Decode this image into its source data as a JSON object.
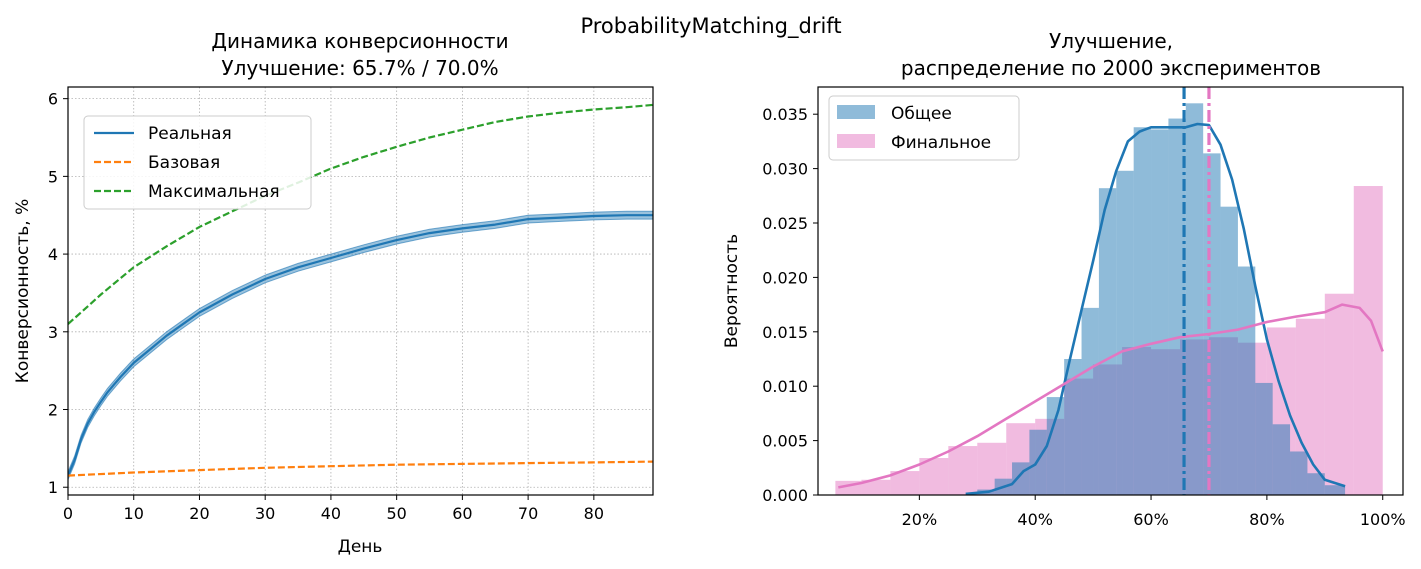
{
  "suptitle": "ProbabilityMatching_drift",
  "chart_data": [
    {
      "type": "line",
      "title": "Динамика конверсионности",
      "subtitle": "Улучшение: 65.7% / 70.0%",
      "xlabel": "День",
      "ylabel": "Конверсионность, %",
      "xlim": [
        0,
        89
      ],
      "ylim": [
        0.9,
        6.15
      ],
      "x_ticks": [
        0,
        10,
        20,
        30,
        40,
        50,
        60,
        70,
        80
      ],
      "y_ticks": [
        1,
        2,
        3,
        4,
        5,
        6
      ],
      "grid": true,
      "legend_position": "upper-left",
      "series": [
        {
          "name": "Реальная",
          "color": "#1f77b4",
          "style": "solid",
          "band": 0.05,
          "x": [
            0,
            1,
            2,
            3,
            4,
            5,
            6,
            7,
            8,
            10,
            12,
            15,
            18,
            20,
            25,
            30,
            35,
            40,
            45,
            50,
            55,
            60,
            65,
            70,
            75,
            80,
            85,
            89
          ],
          "y": [
            1.15,
            1.35,
            1.62,
            1.82,
            1.97,
            2.1,
            2.22,
            2.32,
            2.42,
            2.6,
            2.74,
            2.95,
            3.13,
            3.25,
            3.48,
            3.68,
            3.83,
            3.95,
            4.07,
            4.18,
            4.27,
            4.33,
            4.38,
            4.45,
            4.47,
            4.49,
            4.5,
            4.5
          ]
        },
        {
          "name": "Базовая",
          "color": "#ff7f0e",
          "style": "dashed",
          "x": [
            0,
            10,
            20,
            30,
            40,
            50,
            60,
            70,
            80,
            89
          ],
          "y": [
            1.15,
            1.19,
            1.22,
            1.25,
            1.27,
            1.29,
            1.3,
            1.31,
            1.32,
            1.33
          ]
        },
        {
          "name": "Максимальная",
          "color": "#2ca02c",
          "style": "dashed",
          "x": [
            0,
            2,
            5,
            10,
            15,
            20,
            25,
            30,
            35,
            40,
            45,
            50,
            55,
            60,
            65,
            70,
            75,
            80,
            85,
            89
          ],
          "y": [
            3.1,
            3.25,
            3.48,
            3.83,
            4.1,
            4.35,
            4.55,
            4.75,
            4.92,
            5.1,
            5.25,
            5.38,
            5.5,
            5.6,
            5.7,
            5.77,
            5.82,
            5.86,
            5.89,
            5.92
          ]
        }
      ]
    },
    {
      "type": "histogram",
      "title": "Улучшение,",
      "subtitle": "распределение по 2000 экспериментов",
      "xlabel": "",
      "ylabel": "Вероятность",
      "xlim": [
        0.025,
        1.035
      ],
      "ylim": [
        0,
        0.0375
      ],
      "x_ticks": [
        0.2,
        0.4,
        0.6,
        0.8,
        1.0
      ],
      "x_tick_labels": [
        "20%",
        "40%",
        "60%",
        "80%",
        "100%"
      ],
      "y_ticks": [
        0.0,
        0.005,
        0.01,
        0.015,
        0.02,
        0.025,
        0.03,
        0.035
      ],
      "y_tick_labels": [
        "0.000",
        "0.005",
        "0.010",
        "0.015",
        "0.020",
        "0.025",
        "0.030",
        "0.035"
      ],
      "legend_position": "upper-left",
      "series": [
        {
          "name": "Общее",
          "color": "#1f77b4",
          "bin_edges": [
            0.28,
            0.3,
            0.33,
            0.36,
            0.39,
            0.42,
            0.45,
            0.48,
            0.51,
            0.54,
            0.57,
            0.6,
            0.63,
            0.66,
            0.69,
            0.72,
            0.75,
            0.78,
            0.81,
            0.84,
            0.87,
            0.9,
            0.935
          ],
          "values": [
            0.0001,
            0.0005,
            0.0015,
            0.003,
            0.006,
            0.009,
            0.0125,
            0.0172,
            0.0282,
            0.0298,
            0.0338,
            0.0336,
            0.0346,
            0.036,
            0.0314,
            0.0265,
            0.021,
            0.0103,
            0.0065,
            0.004,
            0.002,
            0.0009
          ],
          "kde_x": [
            0.28,
            0.32,
            0.36,
            0.38,
            0.4,
            0.42,
            0.44,
            0.46,
            0.48,
            0.5,
            0.52,
            0.54,
            0.56,
            0.58,
            0.6,
            0.62,
            0.64,
            0.66,
            0.68,
            0.7,
            0.72,
            0.74,
            0.76,
            0.78,
            0.8,
            0.82,
            0.84,
            0.86,
            0.88,
            0.9,
            0.935
          ],
          "kde_y": [
            0.0001,
            0.0003,
            0.001,
            0.0022,
            0.0028,
            0.0045,
            0.0078,
            0.0125,
            0.017,
            0.0215,
            0.0262,
            0.0298,
            0.0325,
            0.0334,
            0.0338,
            0.0338,
            0.0338,
            0.0338,
            0.0341,
            0.034,
            0.0322,
            0.029,
            0.0245,
            0.0192,
            0.0143,
            0.0105,
            0.0073,
            0.0048,
            0.0028,
            0.0014,
            0.0008
          ],
          "mean_line": 0.657
        },
        {
          "name": "Финальное",
          "color": "#e377c2",
          "bin_edges": [
            0.055,
            0.1,
            0.15,
            0.2,
            0.25,
            0.3,
            0.35,
            0.4,
            0.45,
            0.5,
            0.55,
            0.6,
            0.65,
            0.7,
            0.75,
            0.8,
            0.85,
            0.9,
            0.95,
            1.0
          ],
          "values": [
            0.0013,
            0.0014,
            0.0022,
            0.0034,
            0.0045,
            0.0048,
            0.0066,
            0.007,
            0.0107,
            0.012,
            0.0136,
            0.0134,
            0.0143,
            0.0145,
            0.014,
            0.0154,
            0.0162,
            0.0185,
            0.0284
          ],
          "kde_x": [
            0.06,
            0.1,
            0.15,
            0.2,
            0.25,
            0.3,
            0.35,
            0.4,
            0.45,
            0.5,
            0.55,
            0.6,
            0.65,
            0.7,
            0.75,
            0.8,
            0.85,
            0.9,
            0.93,
            0.96,
            0.98,
            1.0
          ],
          "kde_y": [
            0.0007,
            0.0011,
            0.0018,
            0.0028,
            0.004,
            0.0054,
            0.007,
            0.0086,
            0.0102,
            0.0118,
            0.0132,
            0.0139,
            0.0145,
            0.0148,
            0.0152,
            0.0159,
            0.0164,
            0.0168,
            0.0175,
            0.0172,
            0.016,
            0.0132
          ],
          "mean_line": 0.7
        }
      ]
    }
  ]
}
